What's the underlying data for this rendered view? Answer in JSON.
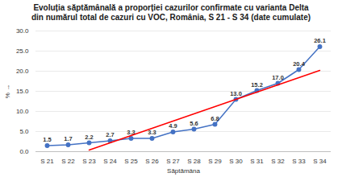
{
  "chart_data": {
    "type": "line",
    "title": "Evoluția săptămânală a proporției cazurilor confirmate cu varianta Delta",
    "subtitle": "din numărul total de cazuri cu VOC, România, S 21 - S 34 (date cumulate)",
    "x_label": "Săptămâna",
    "y_label": "%",
    "categories": [
      "S 21",
      "S 22",
      "S 23",
      "S 24",
      "S 25",
      "S 26",
      "S 27",
      "S 28",
      "S 29",
      "S 30",
      "S 31",
      "S 32",
      "S 33",
      "S 34"
    ],
    "series": [
      {
        "color": "#4472c4",
        "marker": "circle",
        "line_style": "solid",
        "data_labels": true,
        "values": [
          1.5,
          1.7,
          2.2,
          2.7,
          3.3,
          3.3,
          4.9,
          5.6,
          6.8,
          13.0,
          15.2,
          17.0,
          20.4,
          26.1
        ],
        "value_labels": [
          "1.5",
          "1.7",
          "2.2",
          "2.7",
          "3.3",
          "3.3",
          "4.9",
          "5.6",
          "6.8",
          "13.0",
          "15.2",
          "17.0",
          "20.4",
          "26.1"
        ]
      },
      {
        "color": "#ff0000",
        "marker": "none",
        "line_style": "solid",
        "data_labels": false,
        "values": [
          null,
          null,
          0.4,
          2.2,
          4.0,
          5.8,
          7.6,
          9.4,
          11.2,
          13.0,
          14.8,
          16.6,
          18.4,
          20.2
        ]
      }
    ],
    "ylim": [
      0,
      30
    ],
    "yticks": [
      {
        "value": 0,
        "label": "0.0"
      },
      {
        "value": 5,
        "label": "5.0"
      },
      {
        "value": 10,
        "label": "10.0"
      },
      {
        "value": 15,
        "label": "15.0"
      },
      {
        "value": 20,
        "label": "20.0"
      },
      {
        "value": 25,
        "label": "25.0"
      },
      {
        "value": 30,
        "label": "30.0"
      }
    ],
    "grid": true
  }
}
